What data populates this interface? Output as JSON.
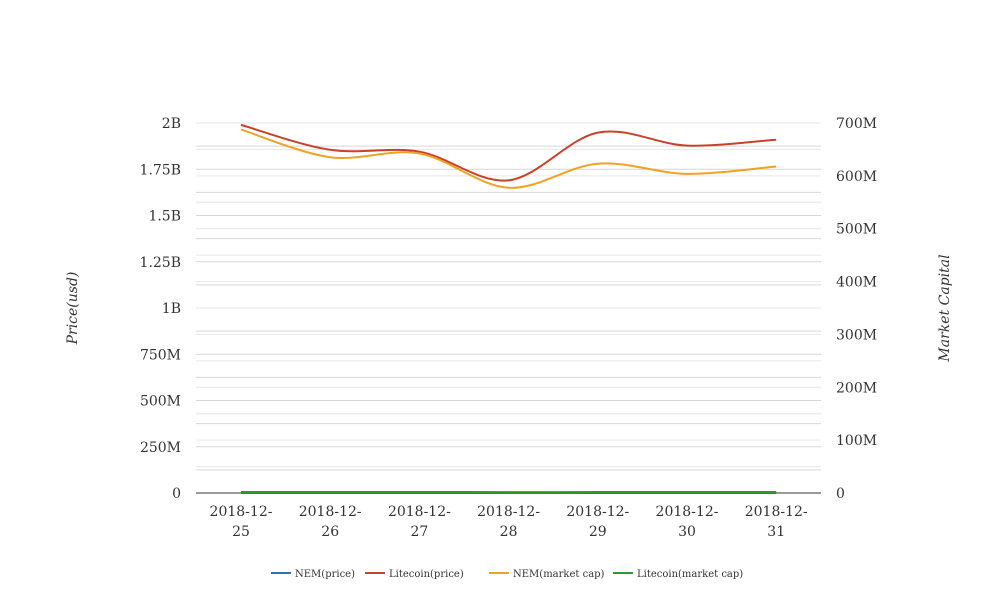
{
  "chart_data": {
    "type": "line",
    "categories": [
      "2018-12-25",
      "2018-12-26",
      "2018-12-27",
      "2018-12-28",
      "2018-12-29",
      "2018-12-30",
      "2018-12-31"
    ],
    "category_lines": [
      [
        "2018-12-",
        "25"
      ],
      [
        "2018-12-",
        "26"
      ],
      [
        "2018-12-",
        "27"
      ],
      [
        "2018-12-",
        "28"
      ],
      [
        "2018-12-",
        "29"
      ],
      [
        "2018-12-",
        "30"
      ],
      [
        "2018-12-",
        "31"
      ]
    ],
    "y_left": {
      "label": "Price(usd)",
      "range": [
        0,
        2000000000
      ],
      "ticks": [
        0,
        250000000,
        500000000,
        750000000,
        1000000000,
        1250000000,
        1500000000,
        1750000000,
        2000000000
      ],
      "tick_labels": [
        "0",
        "250M",
        "500M",
        "750M",
        "1B",
        "1.25B",
        "1.5B",
        "1.75B",
        "2B"
      ]
    },
    "y_right": {
      "label": "Market Capital",
      "range": [
        0,
        700000000
      ],
      "ticks": [
        0,
        100000000,
        200000000,
        300000000,
        400000000,
        500000000,
        600000000,
        700000000
      ],
      "tick_labels": [
        "0",
        "100M",
        "200M",
        "300M",
        "400M",
        "500M",
        "600M",
        "700M"
      ]
    },
    "series": [
      {
        "name": "NEM(price)",
        "axis": "left",
        "color": "#2f6ebf",
        "values": [
          0.0352,
          0.0445,
          0.0472,
          0.0428,
          0.0471,
          0.0457,
          0.045
        ]
      },
      {
        "name": "Litecoin(price)",
        "axis": "left",
        "color": "#c8422a",
        "values": [
          1990000000,
          1855000000,
          1845000000,
          1690000000,
          1948000000,
          1878000000,
          1910000000
        ]
      },
      {
        "name": "NEM(market cap)",
        "axis": "left",
        "color": "#f0a224",
        "values": [
          1965000000,
          1815000000,
          1835000000,
          1650000000,
          1780000000,
          1725000000,
          1765000000
        ]
      },
      {
        "name": "Litecoin(market cap)",
        "axis": "right",
        "color": "#2e9a2e",
        "values": [
          1800000,
          1850000,
          1870000,
          1620000,
          1810000,
          1800000,
          1830000
        ]
      }
    ],
    "grid": true,
    "legend_position": "bottom"
  }
}
